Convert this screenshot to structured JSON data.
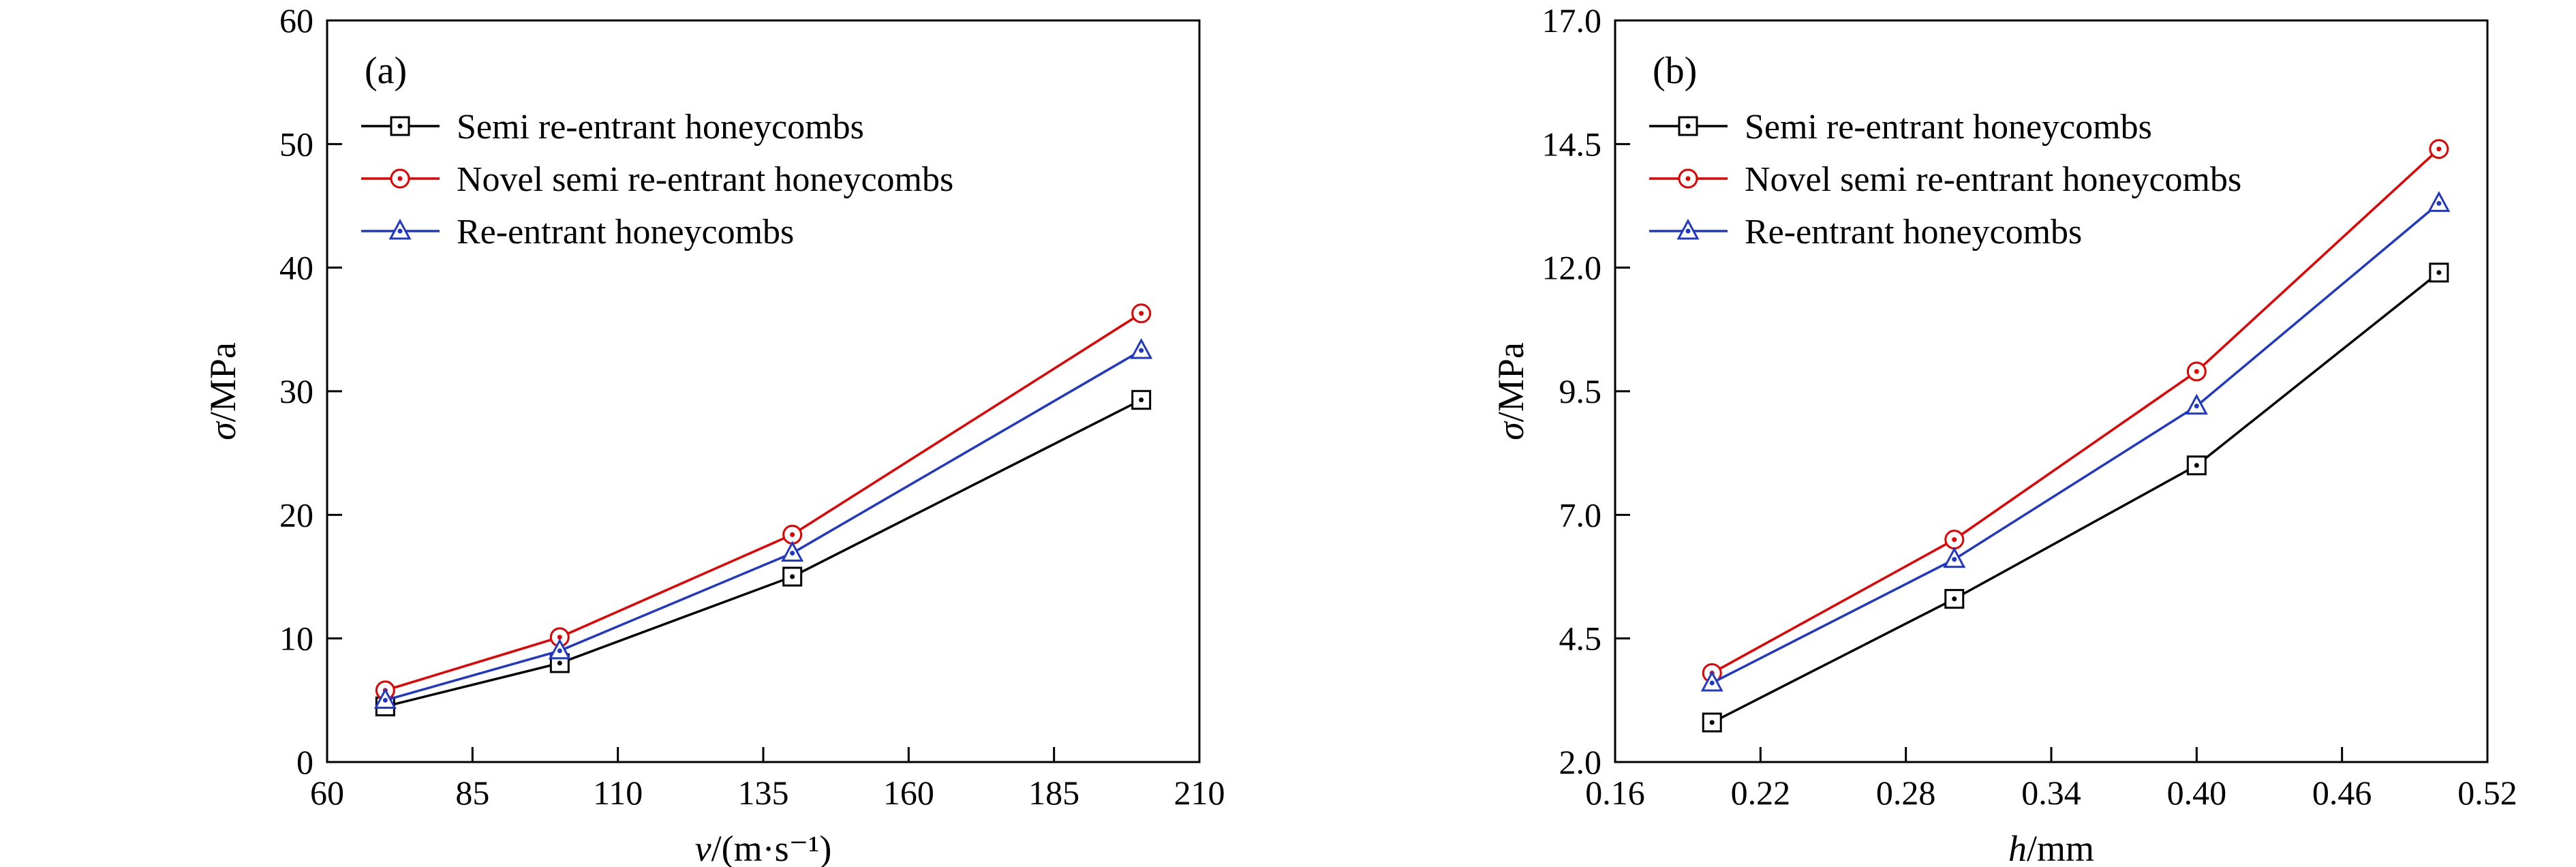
{
  "figure": {
    "background": "#ffffff",
    "frame_color": "#000000"
  },
  "chart_data": [
    {
      "type": "line",
      "panel_label": "(a)",
      "xlabel_var": "v",
      "xlabel_rest": "/(m·s⁻¹)",
      "ylabel_var": "σ",
      "ylabel_rest": "/MPa",
      "xlim": [
        60,
        210
      ],
      "ylim": [
        0,
        60
      ],
      "xtick_labels": [
        "60",
        "85",
        "110",
        "135",
        "160",
        "185",
        "210"
      ],
      "ytick_labels": [
        "0",
        "10",
        "20",
        "30",
        "40",
        "50",
        "60"
      ],
      "grid": false,
      "legend_position": "top-left",
      "x": [
        70,
        100,
        140,
        200
      ],
      "series": [
        {
          "name": "Semi re-entrant honeycombs",
          "color": "#000000",
          "marker": "square",
          "values": [
            4.5,
            8.0,
            15.0,
            29.3
          ]
        },
        {
          "name": "Novel semi re-entrant honeycombs",
          "color": "#e60000",
          "marker": "circle",
          "values": [
            5.8,
            10.1,
            18.4,
            36.3
          ]
        },
        {
          "name": "Re-entrant honeycombs",
          "color": "#2038c8",
          "marker": "triangle",
          "values": [
            5.0,
            9.0,
            16.9,
            33.3
          ]
        }
      ]
    },
    {
      "type": "line",
      "panel_label": "(b)",
      "xlabel_var": "h",
      "xlabel_rest": "/mm",
      "ylabel_var": "σ",
      "ylabel_rest": "/MPa",
      "xlim": [
        0.16,
        0.52
      ],
      "ylim": [
        2.0,
        17.0
      ],
      "xtick_labels": [
        "0.16",
        "0.22",
        "0.28",
        "0.34",
        "0.40",
        "0.46",
        "0.52"
      ],
      "ytick_labels": [
        "2.0",
        "4.5",
        "7.0",
        "9.5",
        "12.0",
        "14.5",
        "17.0"
      ],
      "grid": false,
      "legend_position": "top-left",
      "x": [
        0.2,
        0.3,
        0.4,
        0.5
      ],
      "series": [
        {
          "name": "Semi re-entrant honeycombs",
          "color": "#000000",
          "marker": "square",
          "values": [
            2.8,
            5.3,
            8.0,
            11.9
          ]
        },
        {
          "name": "Novel semi re-entrant honeycombs",
          "color": "#e60000",
          "marker": "circle",
          "values": [
            3.8,
            6.5,
            9.9,
            14.4
          ]
        },
        {
          "name": "Re-entrant honeycombs",
          "color": "#2038c8",
          "marker": "triangle",
          "values": [
            3.6,
            6.1,
            9.2,
            13.3
          ]
        }
      ]
    }
  ]
}
